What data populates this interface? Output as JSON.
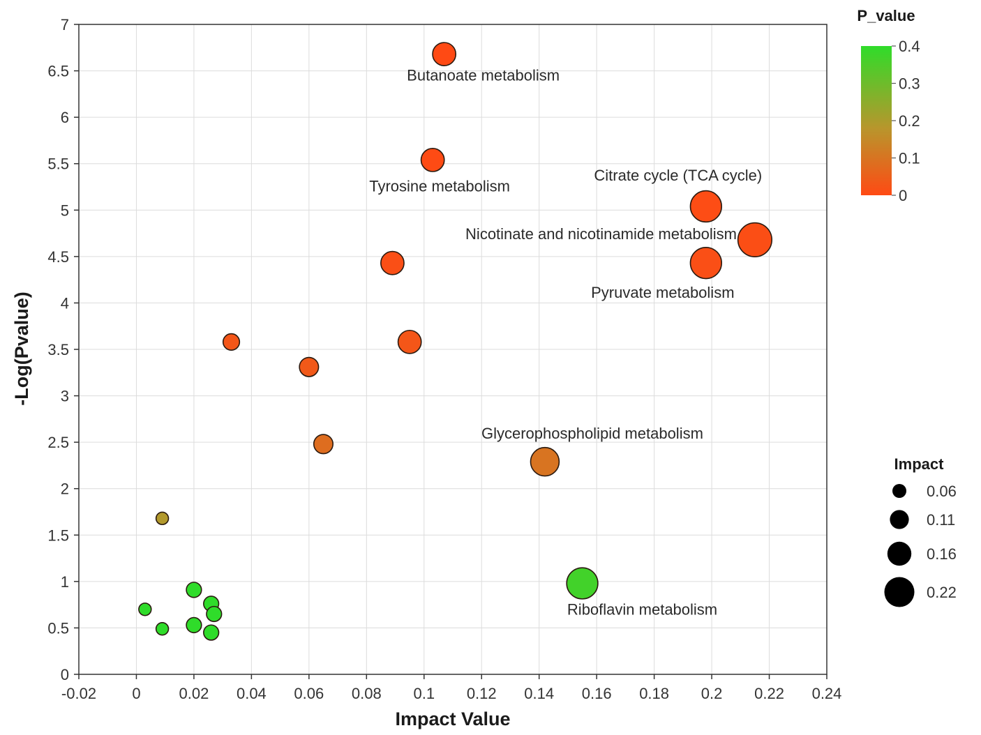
{
  "chart_data": {
    "type": "scatter",
    "xlabel": "Impact Value",
    "ylabel": "-Log(Pvalue)",
    "xlim": [
      -0.02,
      0.24
    ],
    "ylim": [
      0,
      7
    ],
    "xticks": [
      "-0.02",
      "0",
      "0.02",
      "0.04",
      "0.06",
      "0.08",
      "0.1",
      "0.12",
      "0.14",
      "0.16",
      "0.18",
      "0.2",
      "0.22",
      "0.24"
    ],
    "yticks": [
      "0",
      "0.5",
      "1",
      "1.5",
      "2",
      "2.5",
      "3",
      "3.5",
      "4",
      "4.5",
      "5",
      "5.5",
      "6",
      "6.5",
      "7"
    ],
    "grid": true,
    "color_scale": {
      "title": "P_value",
      "range": [
        0,
        0.4
      ],
      "ticks": [
        "0",
        "0.1",
        "0.2",
        "0.3",
        "0.4"
      ],
      "low_color": "#ff4a14",
      "mid_color": "#b8962c",
      "high_color": "#2fdc2a",
      "position": "top-right"
    },
    "size_legend": {
      "title": "Impact",
      "values": [
        0.06,
        0.11,
        0.16,
        0.22
      ],
      "labels": [
        "0.06",
        "0.11",
        "0.16",
        "0.22"
      ],
      "position": "bottom-right"
    },
    "points": [
      {
        "x": 0.107,
        "y": 6.68,
        "impact": 0.16,
        "p": 0.0002,
        "label": "Butanoate metabolism"
      },
      {
        "x": 0.103,
        "y": 5.54,
        "impact": 0.16,
        "p": 0.003,
        "label": "Tyrosine metabolism"
      },
      {
        "x": 0.198,
        "y": 5.04,
        "impact": 0.22,
        "p": 0.006,
        "label": "Citrate cycle (TCA cycle)"
      },
      {
        "x": 0.215,
        "y": 4.68,
        "impact": 0.24,
        "p": 0.009,
        "label": "Nicotinate and nicotinamide metabolism"
      },
      {
        "x": 0.198,
        "y": 4.43,
        "impact": 0.22,
        "p": 0.012,
        "label": "Pyruvate metabolism"
      },
      {
        "x": 0.089,
        "y": 4.43,
        "impact": 0.16,
        "p": 0.012,
        "label": ""
      },
      {
        "x": 0.095,
        "y": 3.58,
        "impact": 0.16,
        "p": 0.028,
        "label": ""
      },
      {
        "x": 0.033,
        "y": 3.58,
        "impact": 0.11,
        "p": 0.028,
        "label": ""
      },
      {
        "x": 0.06,
        "y": 3.31,
        "impact": 0.13,
        "p": 0.036,
        "label": ""
      },
      {
        "x": 0.065,
        "y": 2.48,
        "impact": 0.13,
        "p": 0.084,
        "label": ""
      },
      {
        "x": 0.142,
        "y": 2.29,
        "impact": 0.2,
        "p": 0.1,
        "label": "Glycerophospholipid metabolism"
      },
      {
        "x": 0.009,
        "y": 1.68,
        "impact": 0.08,
        "p": 0.19,
        "label": ""
      },
      {
        "x": 0.155,
        "y": 0.98,
        "impact": 0.22,
        "p": 0.37,
        "label": "Riboflavin metabolism"
      },
      {
        "x": 0.02,
        "y": 0.91,
        "impact": 0.1,
        "p": 0.4,
        "label": ""
      },
      {
        "x": 0.026,
        "y": 0.76,
        "impact": 0.1,
        "p": 0.47,
        "label": ""
      },
      {
        "x": 0.003,
        "y": 0.7,
        "impact": 0.08,
        "p": 0.5,
        "label": ""
      },
      {
        "x": 0.027,
        "y": 0.65,
        "impact": 0.1,
        "p": 0.56,
        "label": ""
      },
      {
        "x": 0.02,
        "y": 0.53,
        "impact": 0.1,
        "p": 0.8,
        "label": ""
      },
      {
        "x": 0.009,
        "y": 0.49,
        "impact": 0.08,
        "p": 0.9,
        "label": ""
      },
      {
        "x": 0.026,
        "y": 0.45,
        "impact": 0.1,
        "p": 1.0,
        "label": ""
      }
    ]
  }
}
